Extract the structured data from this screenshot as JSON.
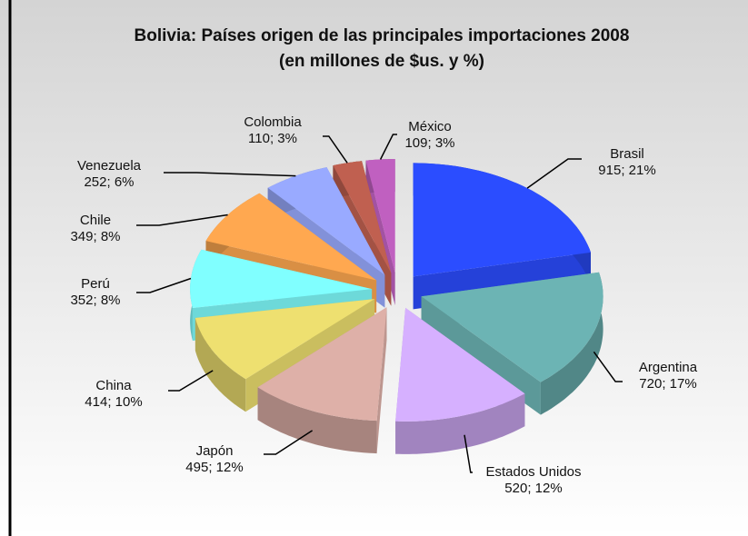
{
  "chart_data": {
    "type": "pie3d",
    "title": "Bolivia: Países origen de las principales importaciones 2008",
    "subtitle": "(en millones de $us. y %)",
    "categories": [
      "Brasil",
      "Argentina",
      "Estados Unidos",
      "Japón",
      "China",
      "Perú",
      "Chile",
      "Venezuela",
      "Colombia",
      "México"
    ],
    "values": [
      915,
      720,
      520,
      495,
      414,
      352,
      349,
      252,
      110,
      109
    ],
    "value_labels": [
      "915; 21%",
      "720; 17%",
      "520; 12%",
      "495; 12%",
      "414; 10%",
      "352; 8%",
      "349; 8%",
      "252; 6%",
      "110; 3%",
      "109; 3%"
    ],
    "colors": [
      "#2b4dff",
      "#6cb4b4",
      "#d6b0ff",
      "#deb0a8",
      "#eee070",
      "#80ffff",
      "#ffa850",
      "#99aaff",
      "#c06050",
      "#c060c0"
    ]
  }
}
